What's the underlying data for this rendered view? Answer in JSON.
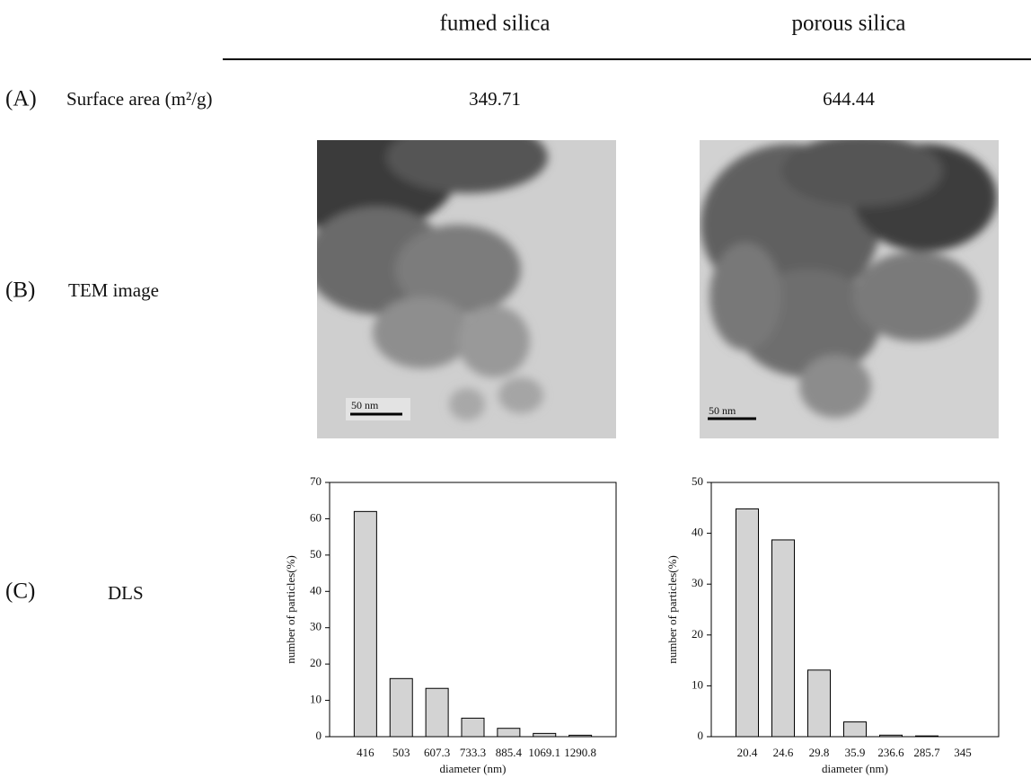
{
  "header": {
    "columns": [
      "fumed silica",
      "porous silica"
    ]
  },
  "rows": [
    {
      "label": "(A)",
      "name": "Surface area (m²/g)",
      "values": [
        "349.71",
        "644.44"
      ]
    },
    {
      "label": "(B)",
      "name": "TEM image",
      "scale_bars": [
        "50 nm",
        "50 nm"
      ]
    },
    {
      "label": "(C)",
      "name": "DLS"
    }
  ],
  "chart_data": [
    {
      "type": "bar",
      "categories": [
        "416",
        "503",
        "607.3",
        "733.3",
        "885.4",
        "1069.1",
        "1290.8"
      ],
      "values": [
        62,
        16,
        13.3,
        5.1,
        2.3,
        0.9,
        0.4
      ],
      "color": "#d3d3d3",
      "ylim": [
        0,
        70
      ],
      "yticks": [
        0,
        10,
        20,
        30,
        40,
        50,
        60,
        70
      ],
      "xlabel": "diameter (nm)",
      "ylabel": "number of particles(%)"
    },
    {
      "type": "bar",
      "categories": [
        "20.4",
        "24.6",
        "29.8",
        "35.9",
        "236.6",
        "285.7",
        "345"
      ],
      "values": [
        44.8,
        38.7,
        13.1,
        2.9,
        0.3,
        0.15,
        0
      ],
      "color": "#d3d3d3",
      "ylim": [
        0,
        50
      ],
      "yticks": [
        0,
        10,
        20,
        30,
        40,
        50
      ],
      "xlabel": "diameter (nm)",
      "ylabel": "number of particles(%)"
    }
  ]
}
